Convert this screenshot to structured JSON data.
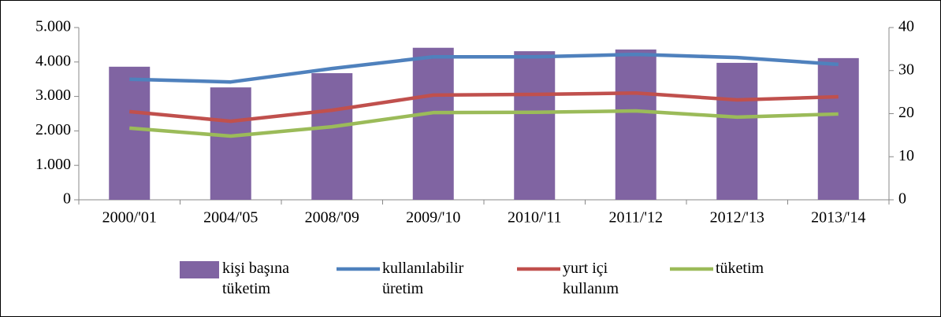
{
  "chart_data": {
    "type": "bar-line",
    "categories": [
      "2000/'01",
      "2004/'05",
      "2008/'09",
      "2009/'10",
      "2010/'11",
      "2011/'12",
      "2012/'13",
      "2013/'14"
    ],
    "series": [
      {
        "name": "kişi başına tüketim",
        "type": "bar",
        "axis": "y2",
        "color": "#8064a2",
        "values": [
          30.9,
          26.1,
          29.4,
          35.3,
          34.5,
          34.9,
          31.8,
          32.9
        ]
      },
      {
        "name": "kullanılabilir üretim",
        "type": "line",
        "color": "#4f81bd",
        "values": [
          3500,
          3420,
          3810,
          4150,
          4150,
          4220,
          4130,
          3930
        ]
      },
      {
        "name": "yurt içi kullanım",
        "type": "line",
        "color": "#c0504d",
        "values": [
          2560,
          2280,
          2600,
          3040,
          3060,
          3100,
          2900,
          2990
        ]
      },
      {
        "name": "tüketim",
        "type": "line",
        "color": "#9bbb59",
        "values": [
          2080,
          1850,
          2120,
          2530,
          2540,
          2580,
          2400,
          2490
        ]
      }
    ],
    "ylim": [
      0,
      5000
    ],
    "yticks": [
      0,
      {
        "value": 1000,
        "label": "1.000"
      },
      {
        "value": 2000,
        "label": "2.000"
      },
      {
        "value": 3000,
        "label": "3.000"
      },
      {
        "value": 4000,
        "label": "4.000"
      },
      {
        "value": 5000,
        "label": "5.000"
      }
    ],
    "y2lim": [
      0,
      40
    ],
    "y2ticks": [
      0,
      10,
      20,
      30,
      40
    ],
    "legend": "bottom"
  }
}
